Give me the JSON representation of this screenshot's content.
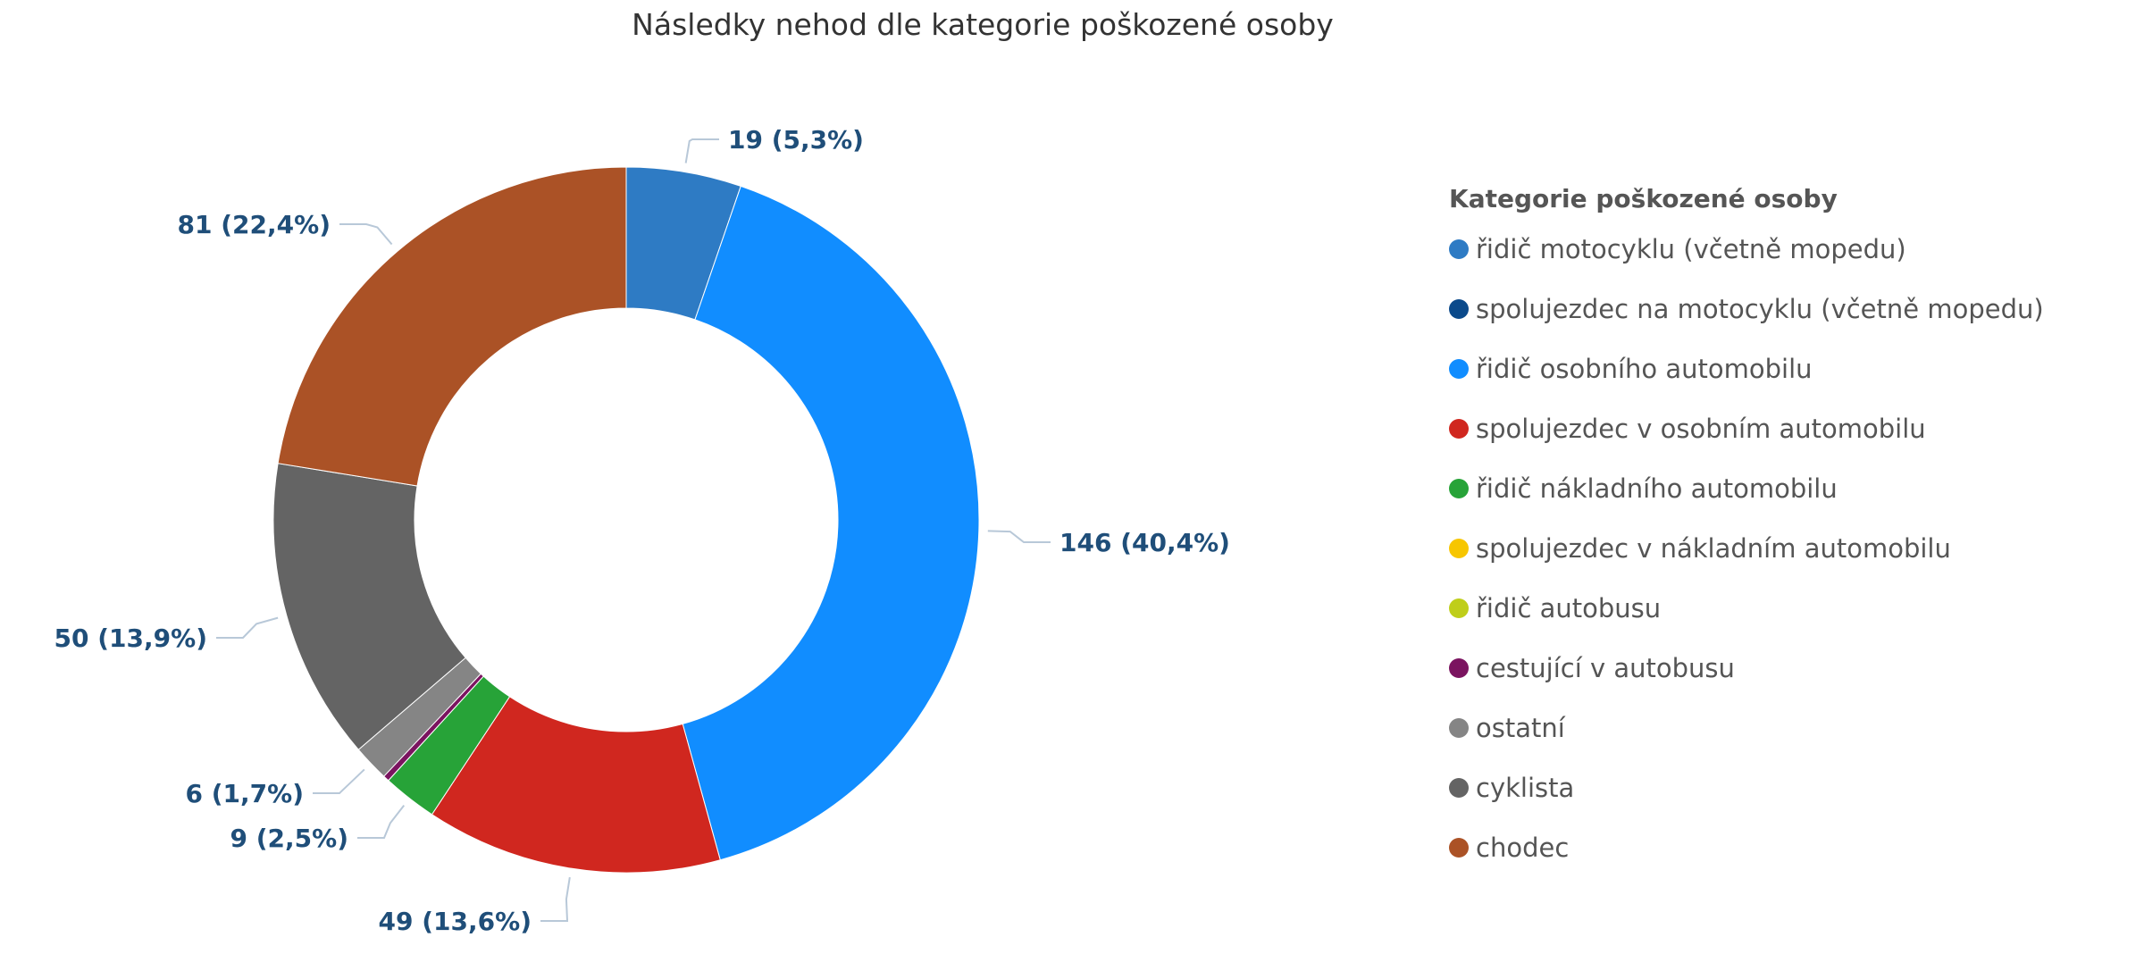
{
  "chart_data": {
    "type": "pie",
    "donut": true,
    "title": "Následky nehod dle kategorie poškozené osoby",
    "legend_title": "Kategorie poškozené osoby",
    "legend_position": "right",
    "categories": [
      "řidič motocyklu (včetně mopedu)",
      "spolujezdec na motocyklu (včetně mopedu)",
      "řidič osobního automobilu",
      "spolujezdec v osobním automobilu",
      "řidič nákladního automobilu",
      "spolujezdec v nákladním automobilu",
      "řidič autobusu",
      "cestující v autobusu",
      "ostatní",
      "cyklista",
      "chodec"
    ],
    "values": [
      19,
      0,
      146,
      49,
      9,
      0,
      0,
      1,
      6,
      50,
      81
    ],
    "data_labels": [
      "19 (5,3%)",
      "",
      "146 (40,4%)",
      "49 (13,6%)",
      "9 (2,5%)",
      "",
      "",
      "",
      "6 (1,7%)",
      "50 (13,9%)",
      "81 (22,4%)"
    ],
    "colors": [
      "#2e7bc4",
      "#0b4a8b",
      "#118dff",
      "#d0271f",
      "#27a338",
      "#f7c600",
      "#bfce1a",
      "#7b1460",
      "#858585",
      "#646464",
      "#ab5226"
    ]
  }
}
